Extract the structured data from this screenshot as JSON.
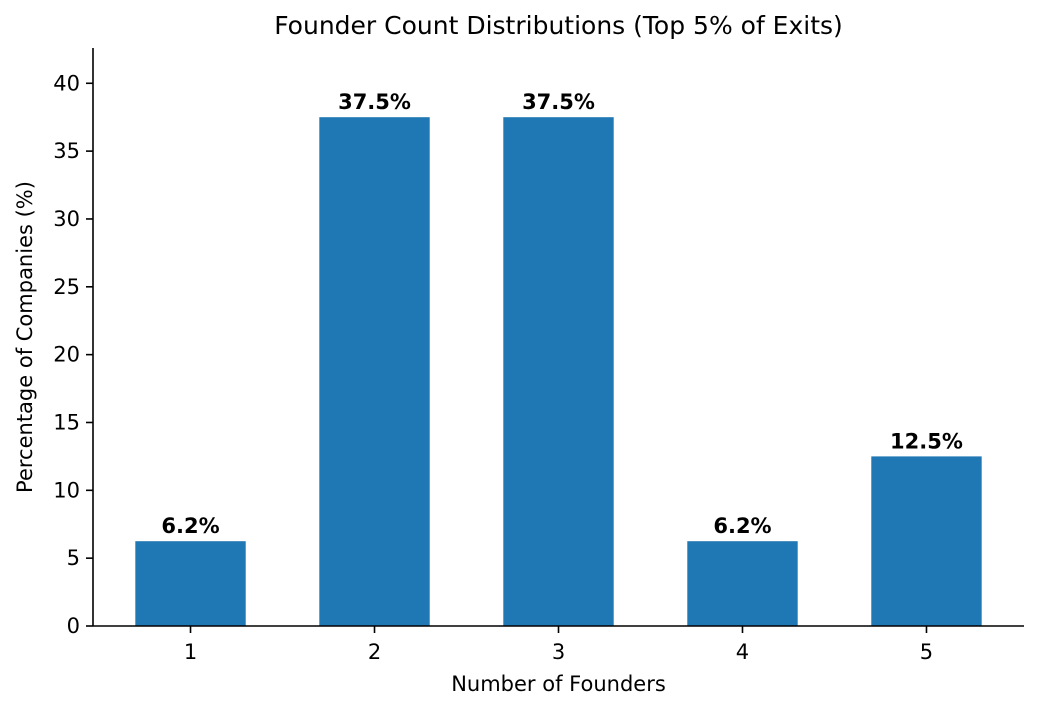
{
  "chart_data": {
    "type": "bar",
    "title": "Founder Count Distributions (Top 5% of Exits)",
    "xlabel": "Number of Founders",
    "ylabel": "Percentage of Companies (%)",
    "categories": [
      "1",
      "2",
      "3",
      "4",
      "5"
    ],
    "values": [
      6.25,
      37.5,
      37.5,
      6.25,
      12.5
    ],
    "data_labels": [
      "6.2%",
      "37.5%",
      "37.5%",
      "6.2%",
      "12.5%"
    ],
    "ylim": [
      0,
      42.6
    ],
    "xlim": [
      0.47,
      5.53
    ],
    "yticks": [
      0,
      5,
      10,
      15,
      20,
      25,
      30,
      35,
      40
    ],
    "xticks": [
      1,
      2,
      3,
      4,
      5
    ],
    "bar_width": 0.6,
    "bar_color": "#1f77b4",
    "grid": false,
    "legend": null,
    "spines": {
      "top": false,
      "right": false,
      "left": true,
      "bottom": true
    }
  }
}
